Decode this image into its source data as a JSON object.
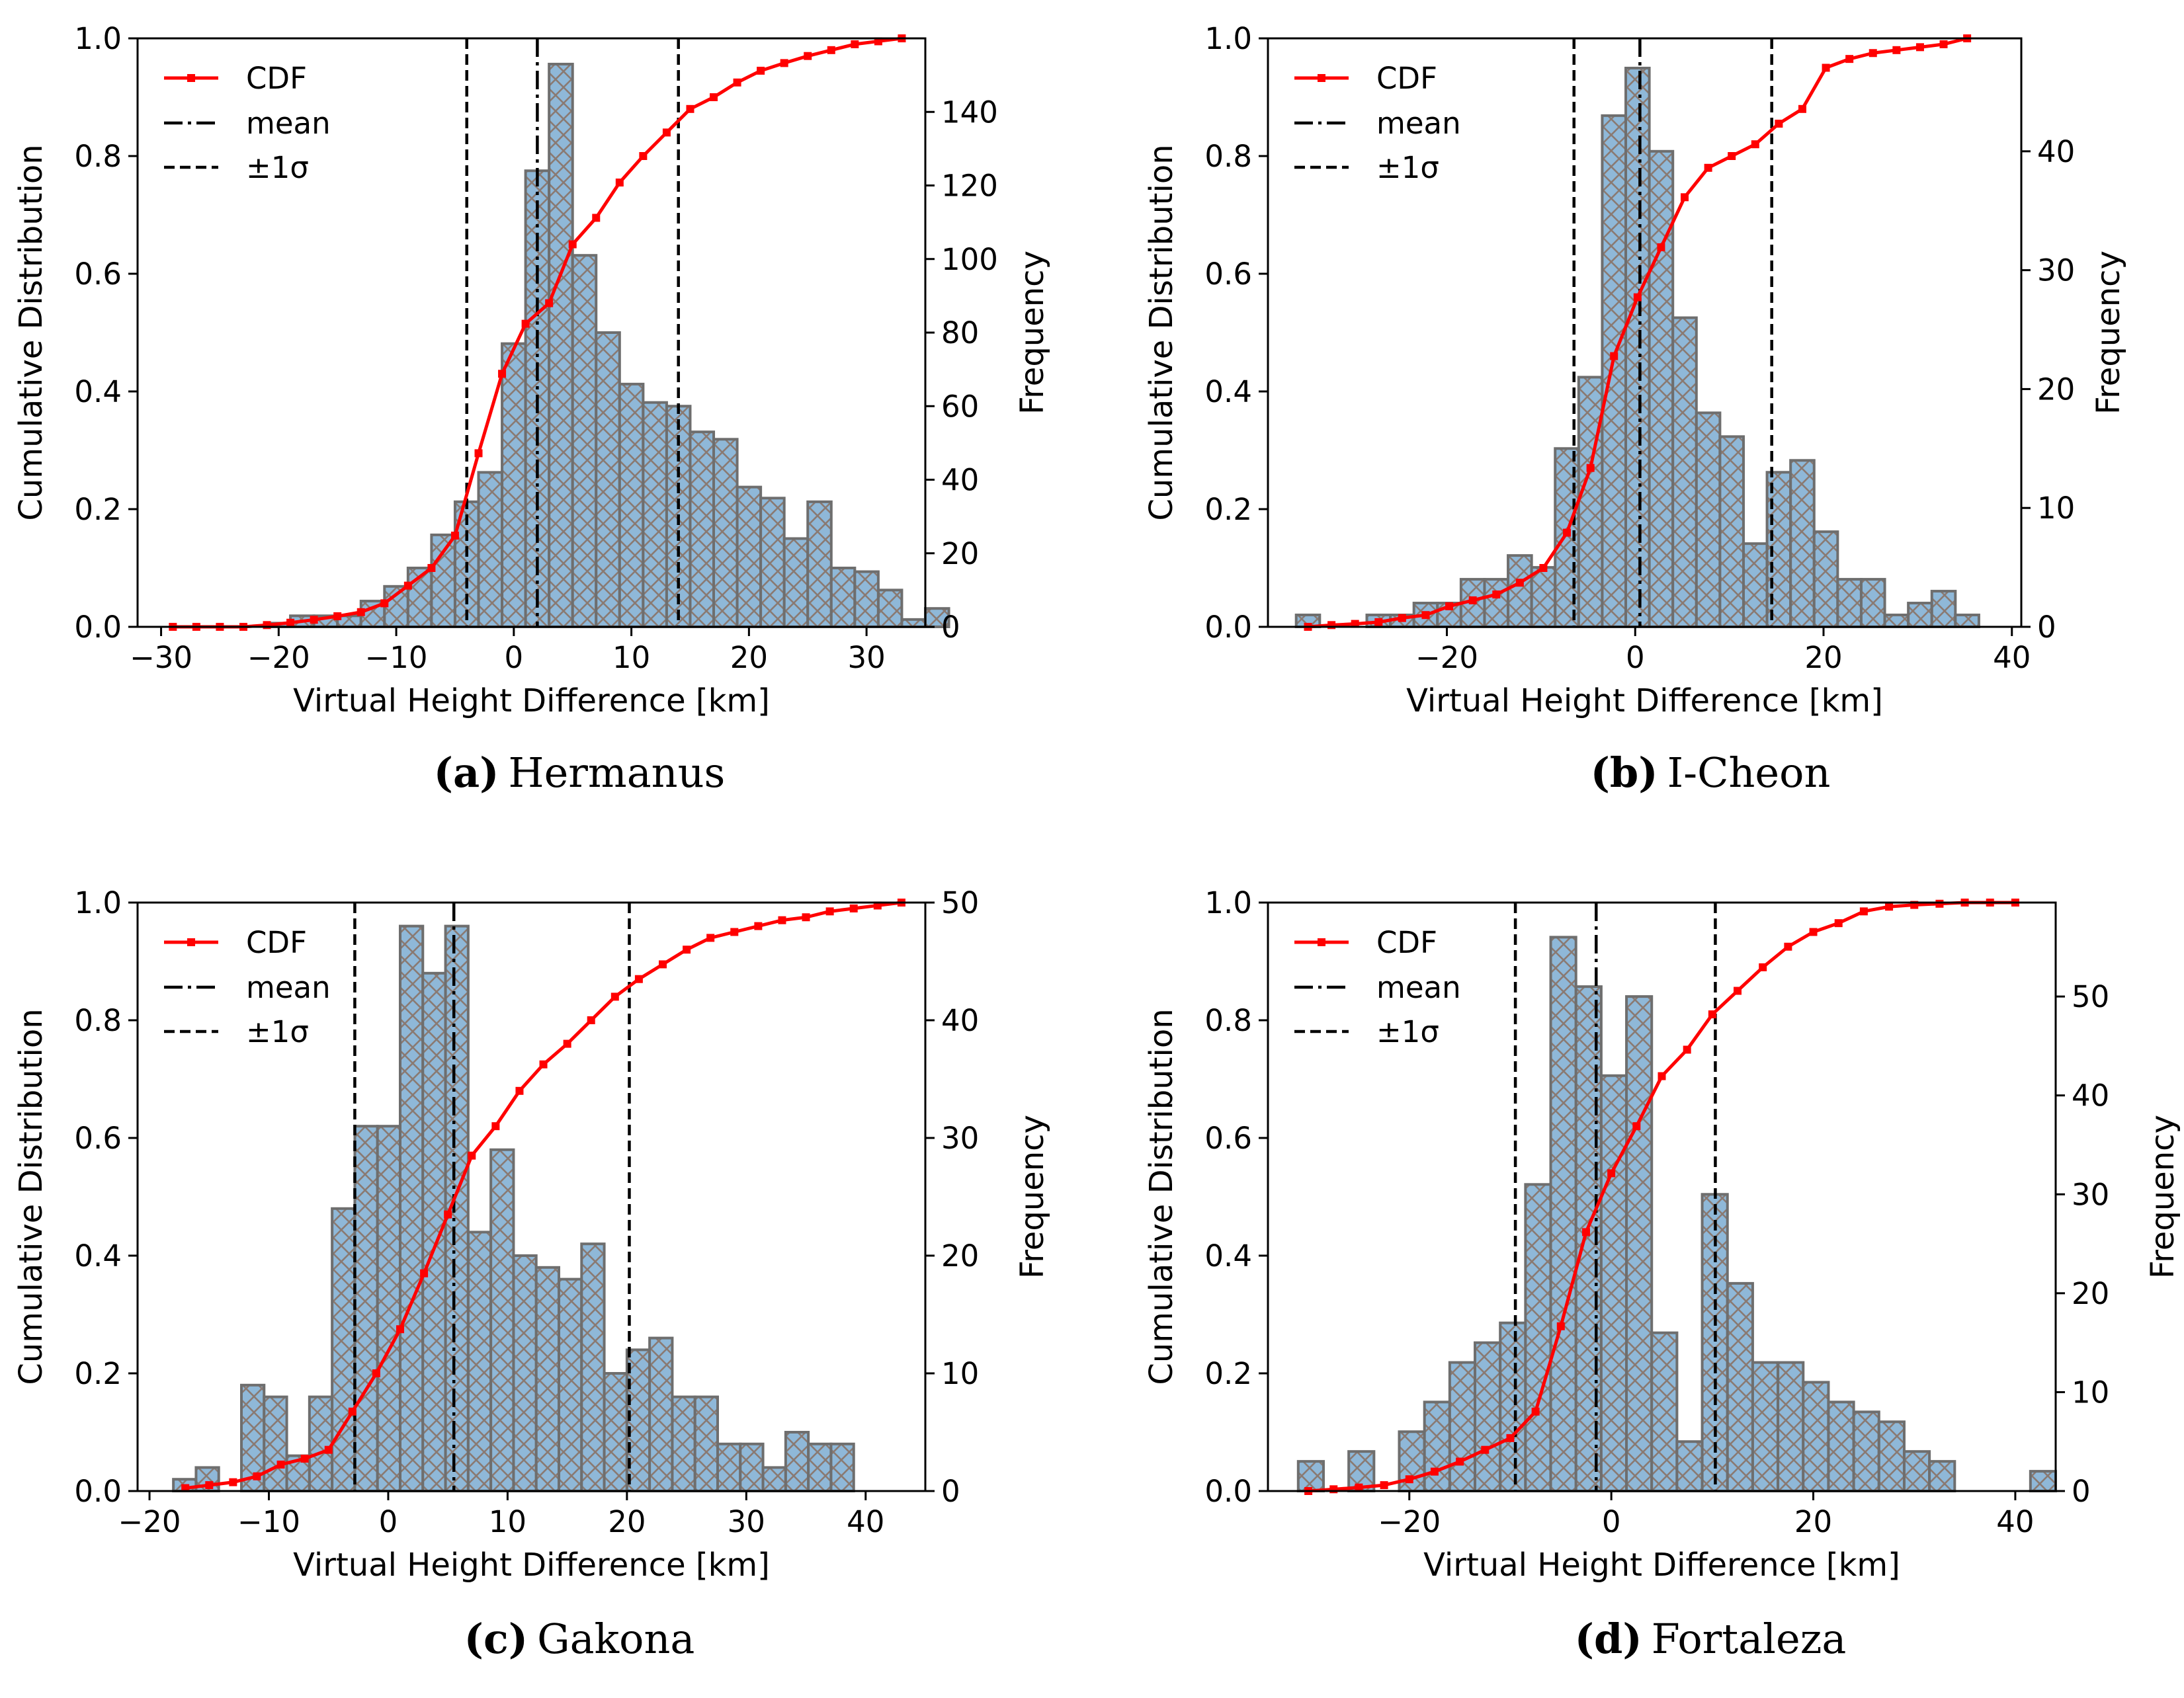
{
  "colors": {
    "hist_fill": "#8fb8d8",
    "hist_edge": "#6e6e6e",
    "hatch": "#8a7a72",
    "cdf": "#ff0000",
    "mean_line": "#000000"
  },
  "legend": {
    "cdf": "CDF",
    "mean": "mean",
    "sigma": "±1σ"
  },
  "chart_data": [
    {
      "type": "bar",
      "panel_letter": "(a)",
      "caption": "Hermanus",
      "xlabel": "Virtual Height Difference [km]",
      "ylabel_left": "Cumulative Distribution",
      "ylabel_right": "Frequency",
      "xlim": [
        -32,
        35
      ],
      "xticks": [
        -30,
        -20,
        -10,
        0,
        10,
        20,
        30
      ],
      "ylim_left": [
        0,
        1.0
      ],
      "yticks_left": [
        0.0,
        0.2,
        0.4,
        0.6,
        0.8,
        1.0
      ],
      "ylim_right": [
        0,
        160
      ],
      "yticks_right": [
        0,
        20,
        40,
        60,
        80,
        100,
        120,
        140
      ],
      "bin_start": -29,
      "bin_width": 2.0,
      "frequencies": [
        0,
        0,
        0,
        0,
        1,
        3,
        3,
        3,
        7,
        11,
        16,
        25,
        34,
        42,
        77,
        124,
        153,
        101,
        80,
        66,
        61,
        60,
        53,
        51,
        38,
        35,
        24,
        34,
        16,
        15,
        10,
        2,
        5
      ],
      "cdf_x": [
        -29,
        -27,
        -25,
        -23,
        -21,
        -19,
        -17,
        -15,
        -13,
        -11,
        -9,
        -7,
        -5,
        -3,
        -1,
        1,
        3,
        5,
        7,
        9,
        11,
        13,
        15,
        17,
        19,
        21,
        23,
        25,
        27,
        29,
        31,
        33
      ],
      "cdf_y": [
        0.0,
        0.0,
        0.0,
        0.0,
        0.003,
        0.007,
        0.012,
        0.018,
        0.025,
        0.04,
        0.07,
        0.1,
        0.155,
        0.295,
        0.43,
        0.515,
        0.55,
        0.65,
        0.695,
        0.755,
        0.8,
        0.84,
        0.88,
        0.9,
        0.925,
        0.945,
        0.958,
        0.97,
        0.98,
        0.99,
        0.995,
        1.0
      ],
      "mean": 2.0,
      "sigma_minus": -4.0,
      "sigma_plus": 14.0
    },
    {
      "type": "bar",
      "panel_letter": "(b)",
      "caption": "I-Cheon",
      "xlabel": "Virtual Height Difference [km]",
      "ylabel_left": "Cumulative Distribution",
      "ylabel_right": "Frequency",
      "xlim": [
        -39,
        41
      ],
      "xticks": [
        -20,
        0,
        20,
        40
      ],
      "ylim_left": [
        0,
        1.0
      ],
      "yticks_left": [
        0.0,
        0.2,
        0.4,
        0.6,
        0.8,
        1.0
      ],
      "ylim_right": [
        0,
        49.5
      ],
      "yticks_right": [
        0,
        10,
        20,
        30,
        40
      ],
      "bin_start": -36,
      "bin_width": 2.5,
      "frequencies": [
        1,
        0,
        0,
        1,
        1,
        2,
        2,
        4,
        4,
        6,
        5,
        15,
        21,
        43,
        47,
        40,
        26,
        18,
        16,
        7,
        13,
        14,
        8,
        4,
        4,
        1,
        2,
        3,
        1
      ],
      "cdf_x": [
        -34.75,
        -32.25,
        -29.75,
        -27.25,
        -24.75,
        -22.25,
        -19.75,
        -17.25,
        -14.75,
        -12.25,
        -9.75,
        -7.25,
        -4.75,
        -2.25,
        0.25,
        2.75,
        5.25,
        7.75,
        10.25,
        12.75,
        15.25,
        17.75,
        20.25,
        22.75,
        25.25,
        27.75,
        30.25,
        32.75,
        35.25
      ],
      "cdf_y": [
        0.0,
        0.003,
        0.005,
        0.008,
        0.015,
        0.02,
        0.035,
        0.045,
        0.055,
        0.075,
        0.1,
        0.16,
        0.27,
        0.46,
        0.56,
        0.645,
        0.73,
        0.78,
        0.8,
        0.82,
        0.855,
        0.88,
        0.95,
        0.965,
        0.975,
        0.98,
        0.985,
        0.99,
        1.0
      ],
      "mean": 0.5,
      "sigma_minus": -6.5,
      "sigma_plus": 14.5
    },
    {
      "type": "bar",
      "panel_letter": "(c)",
      "caption": "Gakona",
      "xlabel": "Virtual Height Difference [km]",
      "ylabel_left": "Cumulative Distribution",
      "ylabel_right": "Frequency",
      "xlim": [
        -21,
        45
      ],
      "xticks": [
        -20,
        -10,
        0,
        10,
        20,
        30,
        40
      ],
      "ylim_left": [
        0,
        1.0
      ],
      "yticks_left": [
        0.0,
        0.2,
        0.4,
        0.6,
        0.8,
        1.0
      ],
      "ylim_right": [
        0,
        50
      ],
      "yticks_right": [
        0,
        10,
        20,
        30,
        40,
        50
      ],
      "bin_start": -18,
      "bin_width": 1.9,
      "frequencies": [
        1,
        2,
        0,
        9,
        8,
        3,
        8,
        24,
        31,
        31,
        48,
        44,
        48,
        22,
        29,
        20,
        19,
        18,
        21,
        10,
        12,
        13,
        8,
        8,
        4,
        4,
        2,
        5,
        4,
        4
      ],
      "cdf_x": [
        -17,
        -15,
        -13,
        -11,
        -9,
        -7,
        -5,
        -3,
        -1,
        1,
        3,
        5,
        7,
        9,
        11,
        13,
        15,
        17,
        19,
        21,
        23,
        25,
        27,
        29,
        31,
        33,
        35,
        37,
        39,
        41,
        43
      ],
      "cdf_y": [
        0.005,
        0.01,
        0.015,
        0.025,
        0.045,
        0.055,
        0.07,
        0.135,
        0.2,
        0.275,
        0.37,
        0.47,
        0.57,
        0.62,
        0.68,
        0.725,
        0.76,
        0.8,
        0.84,
        0.87,
        0.895,
        0.92,
        0.94,
        0.95,
        0.96,
        0.97,
        0.975,
        0.985,
        0.99,
        0.995,
        1.0
      ],
      "mean": 5.5,
      "sigma_minus": -2.8,
      "sigma_plus": 20.2
    },
    {
      "type": "bar",
      "panel_letter": "(d)",
      "caption": "Fortaleza",
      "xlabel": "Virtual Height Difference [km]",
      "ylabel_left": "Cumulative Distribution",
      "ylabel_right": "Frequency",
      "xlim": [
        -34,
        44
      ],
      "xticks": [
        -20,
        0,
        20,
        40
      ],
      "ylim_left": [
        0,
        1.0
      ],
      "yticks_left": [
        0.0,
        0.2,
        0.4,
        0.6,
        0.8,
        1.0
      ],
      "ylim_right": [
        0,
        59.5
      ],
      "yticks_right": [
        0,
        10,
        20,
        30,
        40,
        50
      ],
      "bin_start": -31,
      "bin_width": 2.5,
      "frequencies": [
        3,
        0,
        4,
        0,
        6,
        9,
        13,
        15,
        17,
        31,
        56,
        51,
        42,
        50,
        16,
        5,
        30,
        21,
        13,
        13,
        11,
        9,
        8,
        7,
        4,
        3,
        0,
        0,
        0,
        2
      ],
      "cdf_x": [
        -30,
        -27.5,
        -25,
        -22.5,
        -20,
        -17.5,
        -15,
        -12.5,
        -10,
        -7.5,
        -5,
        -2.5,
        0,
        2.5,
        5,
        7.5,
        10,
        12.5,
        15,
        17.5,
        20,
        22.5,
        25,
        27.5,
        30,
        32.5,
        35,
        37.5,
        40
      ],
      "cdf_y": [
        0.0,
        0.003,
        0.006,
        0.01,
        0.02,
        0.033,
        0.05,
        0.07,
        0.09,
        0.135,
        0.28,
        0.44,
        0.54,
        0.62,
        0.705,
        0.75,
        0.81,
        0.85,
        0.89,
        0.925,
        0.95,
        0.965,
        0.985,
        0.993,
        0.996,
        0.998,
        1.0,
        1.0,
        1.0
      ],
      "mean": -1.5,
      "sigma_minus": -9.5,
      "sigma_plus": 10.3
    }
  ]
}
